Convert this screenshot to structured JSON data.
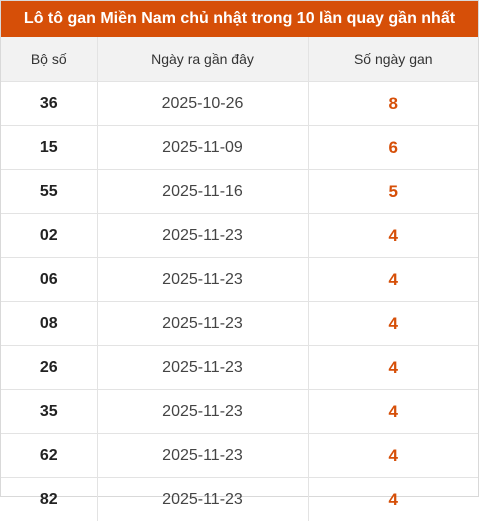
{
  "title": "Lô tô gan Miền Nam chủ nhật trong 10 lần quay gần nhất",
  "headers": {
    "number": "Bộ số",
    "date": "Ngày ra gần đây",
    "days": "Số ngày gan"
  },
  "rows": [
    {
      "number": "36",
      "date": "2025-10-26",
      "days": "8"
    },
    {
      "number": "15",
      "date": "2025-11-09",
      "days": "6"
    },
    {
      "number": "55",
      "date": "2025-11-16",
      "days": "5"
    },
    {
      "number": "02",
      "date": "2025-11-23",
      "days": "4"
    },
    {
      "number": "06",
      "date": "2025-11-23",
      "days": "4"
    },
    {
      "number": "08",
      "date": "2025-11-23",
      "days": "4"
    },
    {
      "number": "26",
      "date": "2025-11-23",
      "days": "4"
    },
    {
      "number": "35",
      "date": "2025-11-23",
      "days": "4"
    },
    {
      "number": "62",
      "date": "2025-11-23",
      "days": "4"
    },
    {
      "number": "82",
      "date": "2025-11-23",
      "days": "4"
    }
  ],
  "colors": {
    "accent": "#d64f08",
    "header_bg": "#f2f2f2"
  }
}
